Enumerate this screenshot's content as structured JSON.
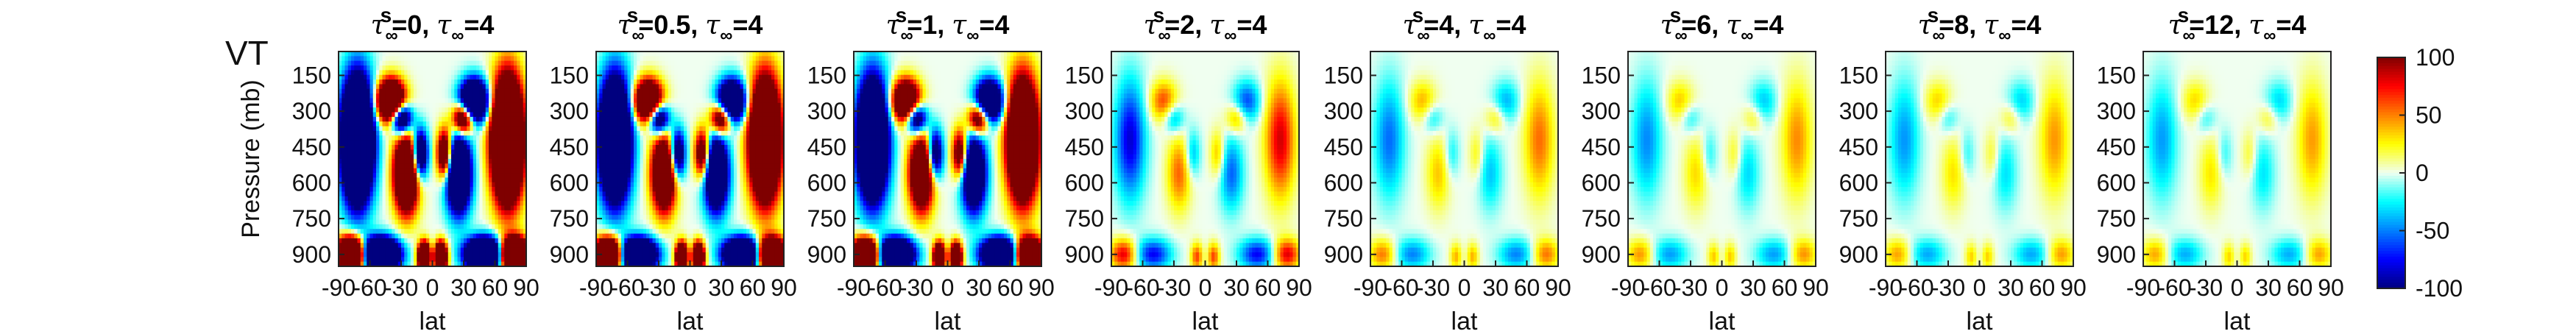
{
  "figure_label": "VT",
  "colorbar": {
    "ticks": [
      "100",
      "50",
      "0",
      "-50",
      "-100"
    ],
    "range": [
      -100,
      100
    ],
    "colormap": [
      "#00007f",
      "#0000ff",
      "#0080ff",
      "#00ffff",
      "#f0fff0",
      "#ffff00",
      "#ff8000",
      "#ff0000",
      "#7f0000"
    ]
  },
  "chart_data": {
    "type": "heatmap",
    "title_template": "tau_inf^s = value, tau_inf = 4",
    "variable": "VT",
    "xlabel": "lat",
    "ylabel": "Pressure (mb)",
    "xticks": [
      "-90",
      "-60",
      "-30",
      "0",
      "30",
      "60",
      "90"
    ],
    "yticks": [
      "150",
      "300",
      "450",
      "600",
      "750",
      "900"
    ],
    "xlim": [
      -90,
      90
    ],
    "ylim": [
      950,
      50
    ],
    "clim": [
      -100,
      100
    ],
    "panels": [
      {
        "tau_s": "0",
        "tau": "4",
        "amplitude": 1.0,
        "saturated": true
      },
      {
        "tau_s": "0.5",
        "tau": "4",
        "amplitude": 0.85,
        "saturated": true
      },
      {
        "tau_s": "1",
        "tau": "4",
        "amplitude": 0.8,
        "saturated": true
      },
      {
        "tau_s": "2",
        "tau": "4",
        "amplitude": 0.7,
        "saturated": false
      },
      {
        "tau_s": "4",
        "tau": "4",
        "amplitude": 0.45,
        "saturated": false
      },
      {
        "tau_s": "6",
        "tau": "4",
        "amplitude": 0.4,
        "saturated": false
      },
      {
        "tau_s": "8",
        "tau": "4",
        "amplitude": 0.38,
        "saturated": false
      },
      {
        "tau_s": "12",
        "tau": "4",
        "amplitude": 0.37,
        "saturated": false
      }
    ]
  }
}
